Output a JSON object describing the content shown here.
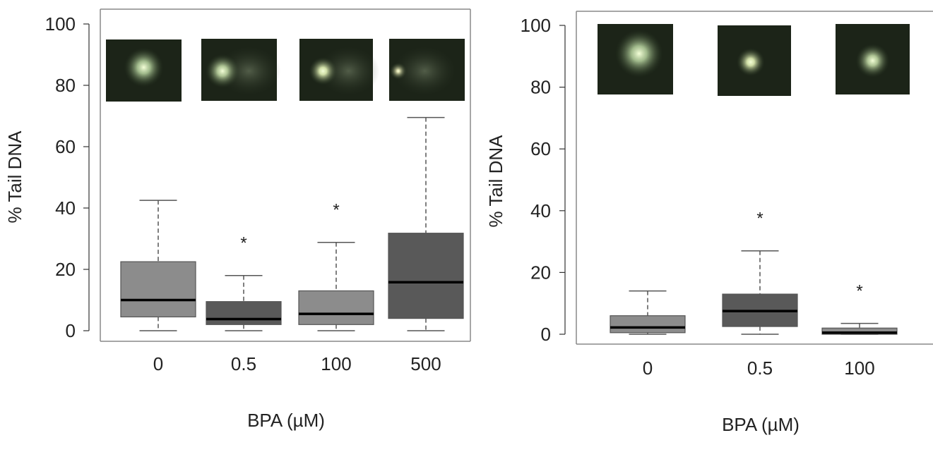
{
  "chart_data": [
    {
      "type": "box",
      "xlabel": "BPA (µM)",
      "ylabel": "% Tail DNA",
      "ylim": [
        0,
        100
      ],
      "yticks": [
        0,
        20,
        40,
        60,
        80,
        100
      ],
      "categories": [
        "0",
        "0.5",
        "100",
        "500"
      ],
      "boxes": [
        {
          "category": "0",
          "min": 0,
          "q1": 4.5,
          "median": 10,
          "q3": 22.5,
          "max": 42.5,
          "significant": false,
          "fill": "#8c8c8c"
        },
        {
          "category": "0.5",
          "min": 0,
          "q1": 2,
          "median": 3.8,
          "q3": 9.5,
          "max": 18,
          "significant": true,
          "fill": "#595959"
        },
        {
          "category": "100",
          "min": 0,
          "q1": 2,
          "median": 5.5,
          "q3": 13,
          "max": 28.8,
          "significant": true,
          "fill": "#8c8c8c"
        },
        {
          "category": "500",
          "min": 0,
          "q1": 4,
          "median": 15.8,
          "q3": 31.8,
          "max": 69.5,
          "significant": false,
          "fill": "#595959"
        }
      ],
      "significance_marker": "*",
      "grid": false
    },
    {
      "type": "box",
      "xlabel": "BPA (µM)",
      "ylabel": "% Tail DNA",
      "ylim": [
        0,
        100
      ],
      "yticks": [
        0,
        20,
        40,
        60,
        80,
        100
      ],
      "categories": [
        "0",
        "0.5",
        "100"
      ],
      "boxes": [
        {
          "category": "0",
          "min": 0,
          "q1": 0.5,
          "median": 2.2,
          "q3": 6,
          "max": 14,
          "significant": false,
          "fill": "#8c8c8c"
        },
        {
          "category": "0.5",
          "min": 0,
          "q1": 2.5,
          "median": 7.5,
          "q3": 13,
          "max": 27,
          "significant": true,
          "fill": "#595959"
        },
        {
          "category": "100",
          "min": 0,
          "q1": 0,
          "median": 0.5,
          "q3": 2,
          "max": 3.5,
          "significant": true,
          "fill": "#8c8c8c"
        }
      ],
      "significance_marker": "*",
      "grid": false
    }
  ]
}
